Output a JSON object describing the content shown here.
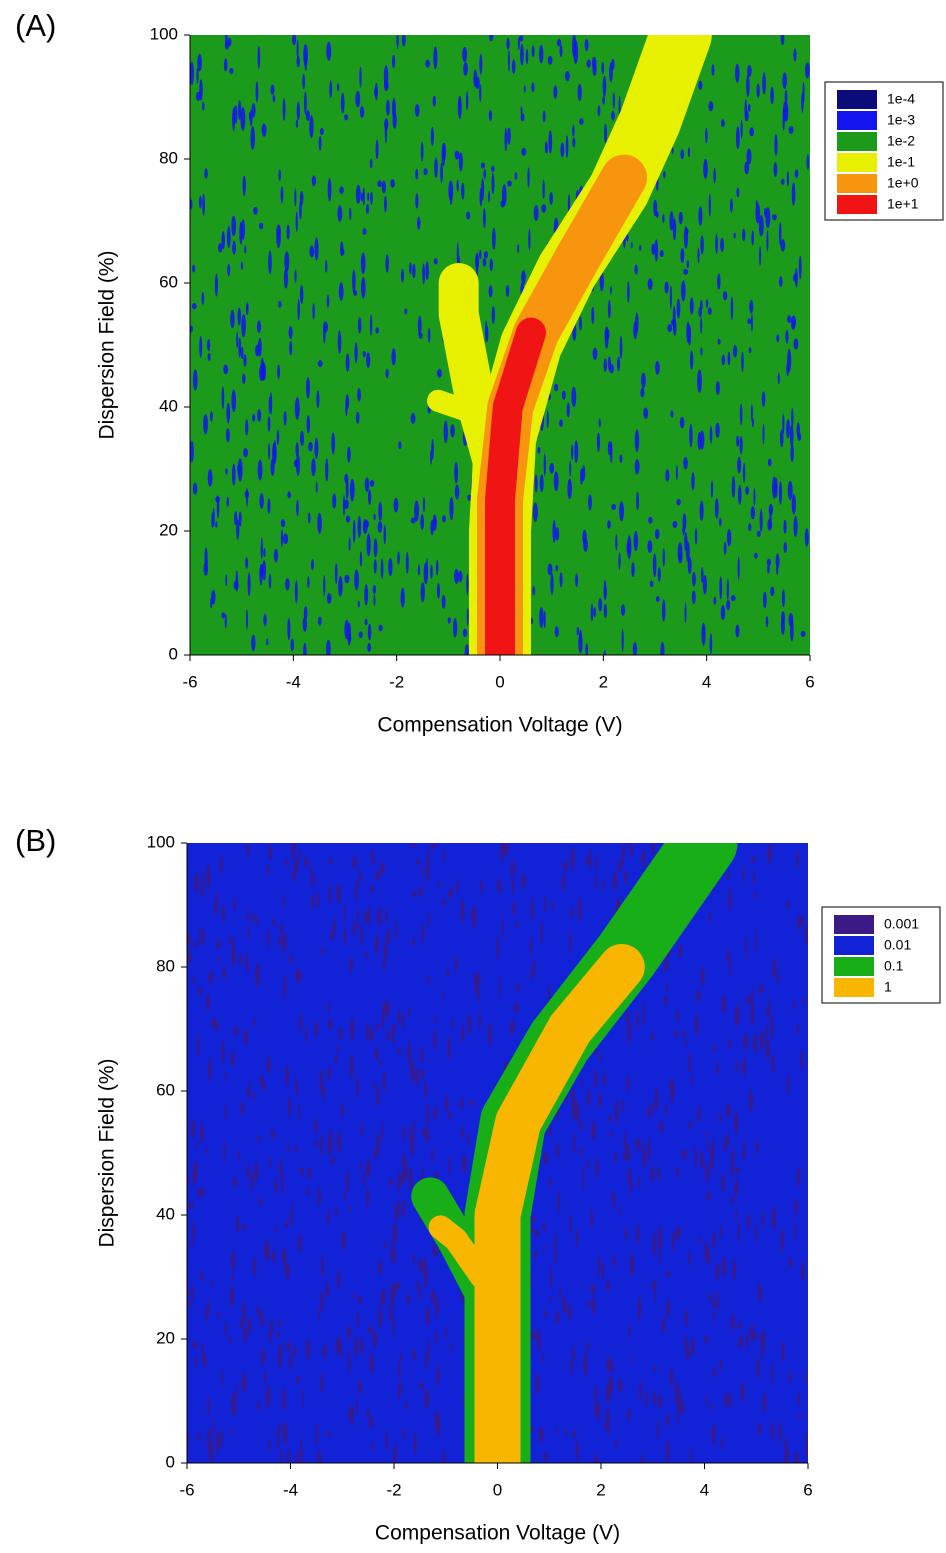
{
  "chart_data": [
    {
      "type": "contour",
      "panel_label": "(A)",
      "x_label": "Compensation Voltage (V)",
      "y_label": "Dispersion Field (%)",
      "xlim": [
        -6,
        6
      ],
      "ylim": [
        0,
        100
      ],
      "xticks": [
        -6,
        -4,
        -2,
        0,
        2,
        4,
        6
      ],
      "yticks": [
        0,
        20,
        40,
        60,
        80,
        100
      ],
      "levels": [
        {
          "value": 0.0001,
          "label": "1e-4",
          "color": "#0b0b7a"
        },
        {
          "value": 0.001,
          "label": "1e-3",
          "color": "#1414ee"
        },
        {
          "value": 0.01,
          "label": "1e-2",
          "color": "#1c9a1c"
        },
        {
          "value": 0.1,
          "label": "1e-1",
          "color": "#e6f000"
        },
        {
          "value": 1,
          "label": "1e+0",
          "color": "#f7950f"
        },
        {
          "value": 10,
          "label": "1e+1",
          "color": "#f01414"
        }
      ]
    },
    {
      "type": "contour",
      "panel_label": "(B)",
      "x_label": "Compensation Voltage (V)",
      "y_label": "Dispersion Field (%)",
      "xlim": [
        -6,
        6
      ],
      "ylim": [
        0,
        100
      ],
      "xticks": [
        -6,
        -4,
        -2,
        0,
        2,
        4,
        6
      ],
      "yticks": [
        0,
        20,
        40,
        60,
        80,
        100
      ],
      "levels": [
        {
          "value": 0.001,
          "label": "0.001",
          "color": "#3c1a86"
        },
        {
          "value": 0.01,
          "label": "0.01",
          "color": "#1222d6"
        },
        {
          "value": 0.1,
          "label": "0.1",
          "color": "#18ae18"
        },
        {
          "value": 1,
          "label": "1",
          "color": "#f8b600"
        }
      ]
    }
  ]
}
